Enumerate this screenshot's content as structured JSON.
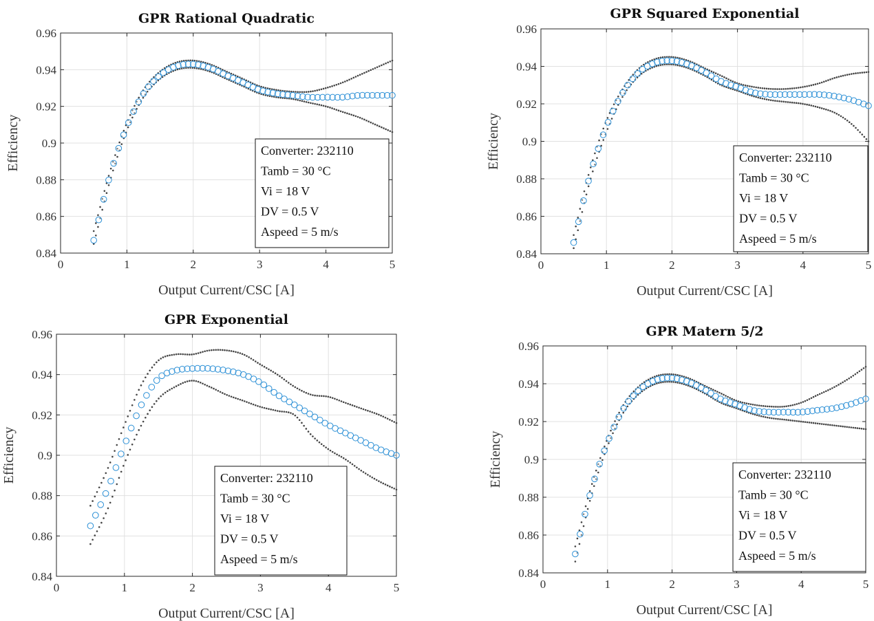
{
  "chart_data": [
    {
      "type": "scatter",
      "title": "GPR Rational Quadratic",
      "xlabel": "Output Current/CSC [A]",
      "ylabel": "Efficiency",
      "xlim": [
        0,
        5
      ],
      "ylim": [
        0.84,
        0.96
      ],
      "xticks": [
        "0",
        "1",
        "2",
        "3",
        "4",
        "5"
      ],
      "yticks": [
        "0.84",
        "0.86",
        "0.88",
        "0.9",
        "0.92",
        "0.94",
        "0.96"
      ],
      "grid": true,
      "annotation": [
        "Converter: 232110",
        "Tamb = 30 °C",
        "Vi = 18 V",
        "DV = 0.5 V",
        "Aspeed = 5 m/s"
      ],
      "annotation_position": "bottom-right",
      "colors": {
        "mean": "#2a8fd6",
        "bounds": "#444444"
      },
      "x": [
        0.5,
        0.75,
        1.0,
        1.25,
        1.5,
        1.75,
        2.0,
        2.25,
        2.5,
        2.75,
        3.0,
        3.25,
        3.5,
        3.75,
        4.0,
        4.25,
        4.5,
        4.75,
        5.0
      ],
      "series": [
        {
          "values": [
            0.847,
            0.883,
            0.909,
            0.927,
            0.937,
            0.942,
            0.943,
            0.941,
            0.937,
            0.933,
            0.929,
            0.927,
            0.926,
            0.925,
            0.925,
            0.925,
            0.926,
            0.926,
            0.926
          ]
        },
        {
          "values": [
            0.852,
            0.885,
            0.911,
            0.929,
            0.939,
            0.944,
            0.945,
            0.943,
            0.939,
            0.935,
            0.931,
            0.929,
            0.928,
            0.928,
            0.93,
            0.933,
            0.937,
            0.941,
            0.945
          ]
        },
        {
          "values": [
            0.845,
            0.88,
            0.907,
            0.925,
            0.935,
            0.94,
            0.941,
            0.939,
            0.935,
            0.931,
            0.927,
            0.925,
            0.924,
            0.922,
            0.92,
            0.917,
            0.914,
            0.91,
            0.906
          ]
        }
      ]
    },
    {
      "type": "scatter",
      "title": "GPR Squared Exponential",
      "xlabel": "Output Current/CSC [A]",
      "ylabel": "Efficiency",
      "xlim": [
        0,
        5
      ],
      "ylim": [
        0.84,
        0.96
      ],
      "xticks": [
        "0",
        "1",
        "2",
        "3",
        "4",
        "5"
      ],
      "yticks": [
        "0.84",
        "0.86",
        "0.88",
        "0.9",
        "0.92",
        "0.94",
        "0.96"
      ],
      "grid": true,
      "annotation": [
        "Converter: 232110",
        "Tamb = 30 °C",
        "Vi = 18 V",
        "DV = 0.5 V",
        "Aspeed = 5 m/s"
      ],
      "annotation_position": "bottom-right",
      "colors": {
        "mean": "#2a8fd6",
        "bounds": "#444444"
      },
      "x": [
        0.5,
        0.75,
        1.0,
        1.25,
        1.5,
        1.75,
        2.0,
        2.25,
        2.5,
        2.75,
        3.0,
        3.25,
        3.5,
        3.75,
        4.0,
        4.25,
        4.5,
        4.75,
        5.0
      ],
      "series": [
        {
          "values": [
            0.846,
            0.882,
            0.908,
            0.926,
            0.937,
            0.942,
            0.943,
            0.941,
            0.937,
            0.932,
            0.929,
            0.926,
            0.925,
            0.925,
            0.925,
            0.925,
            0.924,
            0.922,
            0.919
          ]
        },
        {
          "values": [
            0.85,
            0.885,
            0.911,
            0.928,
            0.939,
            0.944,
            0.945,
            0.943,
            0.939,
            0.935,
            0.931,
            0.929,
            0.928,
            0.928,
            0.929,
            0.931,
            0.934,
            0.936,
            0.937
          ]
        },
        {
          "values": [
            0.843,
            0.879,
            0.905,
            0.924,
            0.935,
            0.94,
            0.941,
            0.939,
            0.935,
            0.93,
            0.927,
            0.924,
            0.922,
            0.921,
            0.92,
            0.918,
            0.915,
            0.909,
            0.9
          ]
        }
      ]
    },
    {
      "type": "scatter",
      "title": "GPR Exponential",
      "xlabel": "Output Current/CSC [A]",
      "ylabel": "Efficiency",
      "xlim": [
        0,
        5
      ],
      "ylim": [
        0.84,
        0.96
      ],
      "xticks": [
        "0",
        "1",
        "2",
        "3",
        "4",
        "5"
      ],
      "yticks": [
        "0.84",
        "0.86",
        "0.88",
        "0.9",
        "0.92",
        "0.94",
        "0.96"
      ],
      "grid": true,
      "annotation": [
        "Converter: 232110",
        "Tamb = 30 °C",
        "Vi = 18 V",
        "DV = 0.5 V",
        "Aspeed = 5 m/s"
      ],
      "annotation_position": "bottom-center",
      "colors": {
        "mean": "#2a8fd6",
        "bounds": "#444444"
      },
      "x": [
        0.5,
        0.75,
        1.0,
        1.25,
        1.5,
        1.75,
        2.0,
        2.25,
        2.5,
        2.75,
        3.0,
        3.25,
        3.5,
        3.75,
        4.0,
        4.25,
        4.5,
        4.75,
        5.0
      ],
      "series": [
        {
          "values": [
            0.865,
            0.883,
            0.905,
            0.925,
            0.938,
            0.942,
            0.943,
            0.943,
            0.942,
            0.94,
            0.936,
            0.93,
            0.925,
            0.92,
            0.915,
            0.911,
            0.907,
            0.903,
            0.9
          ]
        },
        {
          "values": [
            0.875,
            0.893,
            0.915,
            0.935,
            0.947,
            0.95,
            0.95,
            0.952,
            0.952,
            0.95,
            0.945,
            0.94,
            0.934,
            0.93,
            0.929,
            0.926,
            0.923,
            0.92,
            0.916
          ]
        },
        {
          "values": [
            0.856,
            0.873,
            0.896,
            0.915,
            0.928,
            0.934,
            0.937,
            0.934,
            0.93,
            0.927,
            0.924,
            0.922,
            0.92,
            0.91,
            0.903,
            0.898,
            0.892,
            0.887,
            0.883
          ]
        }
      ]
    },
    {
      "type": "scatter",
      "title": "GPR Matern 5/2",
      "xlabel": "Output Current/CSC [A]",
      "ylabel": "Efficiency",
      "xlim": [
        0,
        5
      ],
      "ylim": [
        0.84,
        0.96
      ],
      "xticks": [
        "0",
        "1",
        "2",
        "3",
        "4",
        "5"
      ],
      "yticks": [
        "0.84",
        "0.86",
        "0.88",
        "0.9",
        "0.92",
        "0.94",
        "0.96"
      ],
      "grid": true,
      "annotation": [
        "Converter: 232110",
        "Tamb = 30 °C",
        "Vi = 18 V",
        "DV = 0.5 V",
        "Aspeed = 5 m/s"
      ],
      "annotation_position": "bottom-right",
      "colors": {
        "mean": "#2a8fd6",
        "bounds": "#444444"
      },
      "x": [
        0.5,
        0.75,
        1.0,
        1.25,
        1.5,
        1.75,
        2.0,
        2.25,
        2.5,
        2.75,
        3.0,
        3.25,
        3.5,
        3.75,
        4.0,
        4.25,
        4.5,
        4.75,
        5.0
      ],
      "series": [
        {
          "values": [
            0.85,
            0.884,
            0.909,
            0.927,
            0.937,
            0.942,
            0.943,
            0.941,
            0.937,
            0.932,
            0.929,
            0.926,
            0.925,
            0.925,
            0.925,
            0.926,
            0.927,
            0.929,
            0.932
          ]
        },
        {
          "values": [
            0.854,
            0.886,
            0.911,
            0.929,
            0.939,
            0.944,
            0.945,
            0.943,
            0.939,
            0.935,
            0.931,
            0.929,
            0.928,
            0.928,
            0.93,
            0.934,
            0.938,
            0.943,
            0.949
          ]
        },
        {
          "values": [
            0.846,
            0.881,
            0.907,
            0.925,
            0.935,
            0.94,
            0.941,
            0.939,
            0.935,
            0.93,
            0.927,
            0.924,
            0.922,
            0.921,
            0.92,
            0.919,
            0.918,
            0.917,
            0.916
          ]
        }
      ]
    }
  ]
}
